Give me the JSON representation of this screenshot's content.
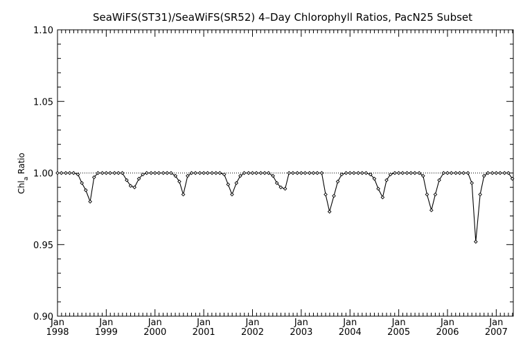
{
  "chart_data": {
    "type": "line",
    "title": "SeaWiFS(ST31)/SeaWiFS(SR52) 4–Day Chlorophyll Ratios, PacN25 Subset",
    "ylabel": "Chl",
    "ylabel_subscript": "a",
    "ylabel_suffix": " Ratio",
    "xlabel": "",
    "ylim": [
      0.9,
      1.1
    ],
    "xlim": [
      1998.0,
      2007.35
    ],
    "yticks": [
      "0.90",
      "0.95",
      "1.00",
      "1.05",
      "1.10"
    ],
    "ytick_values": [
      0.9,
      0.95,
      1.0,
      1.05,
      1.1
    ],
    "xticks": [
      {
        "value": 1998,
        "month": "Jan",
        "year": "1998"
      },
      {
        "value": 1999,
        "month": "Jan",
        "year": "1999"
      },
      {
        "value": 2000,
        "month": "Jan",
        "year": "2000"
      },
      {
        "value": 2001,
        "month": "Jan",
        "year": "2001"
      },
      {
        "value": 2002,
        "month": "Jan",
        "year": "2002"
      },
      {
        "value": 2003,
        "month": "Jan",
        "year": "2003"
      },
      {
        "value": 2004,
        "month": "Jan",
        "year": "2004"
      },
      {
        "value": 2005,
        "month": "Jan",
        "year": "2005"
      },
      {
        "value": 2006,
        "month": "Jan",
        "year": "2006"
      },
      {
        "value": 2007,
        "month": "Jan",
        "year": "2007"
      }
    ],
    "reference_line": 1.0,
    "grid": false,
    "series": [
      {
        "x": [
          1998.0,
          1998.08,
          1998.17,
          1998.25,
          1998.33,
          1998.42,
          1998.5,
          1998.58,
          1998.67,
          1998.75,
          1998.83,
          1998.92,
          1999.0,
          1999.08,
          1999.17,
          1999.25,
          1999.33,
          1999.42,
          1999.5,
          1999.58,
          1999.67,
          1999.75,
          1999.83,
          1999.92,
          2000.0,
          2000.08,
          2000.17,
          2000.25,
          2000.33,
          2000.42,
          2000.5,
          2000.58,
          2000.67,
          2000.75,
          2000.83,
          2000.92,
          2001.0,
          2001.08,
          2001.17,
          2001.25,
          2001.33,
          2001.42,
          2001.5,
          2001.58,
          2001.67,
          2001.75,
          2001.83,
          2001.92,
          2002.0,
          2002.08,
          2002.17,
          2002.25,
          2002.33,
          2002.42,
          2002.5,
          2002.58,
          2002.67,
          2002.75,
          2002.83,
          2002.92,
          2003.0,
          2003.08,
          2003.17,
          2003.25,
          2003.33,
          2003.42,
          2003.5,
          2003.58,
          2003.67,
          2003.75,
          2003.83,
          2003.92,
          2004.0,
          2004.08,
          2004.17,
          2004.25,
          2004.33,
          2004.42,
          2004.5,
          2004.58,
          2004.67,
          2004.75,
          2004.83,
          2004.92,
          2005.0,
          2005.08,
          2005.17,
          2005.25,
          2005.33,
          2005.42,
          2005.5,
          2005.58,
          2005.67,
          2005.75,
          2005.83,
          2005.92,
          2006.0,
          2006.08,
          2006.17,
          2006.25,
          2006.33,
          2006.42,
          2006.5,
          2006.58,
          2006.67,
          2006.75,
          2006.83,
          2006.92,
          2007.0,
          2007.08,
          2007.17,
          2007.25,
          2007.33
        ],
        "y": [
          1.0,
          1.0,
          1.0,
          1.0,
          1.0,
          0.999,
          0.993,
          0.988,
          0.98,
          0.997,
          1.0,
          1.0,
          1.0,
          1.0,
          1.0,
          1.0,
          1.0,
          0.995,
          0.991,
          0.99,
          0.996,
          0.999,
          1.0,
          1.0,
          1.0,
          1.0,
          1.0,
          1.0,
          1.0,
          0.998,
          0.994,
          0.985,
          0.998,
          1.0,
          1.0,
          1.0,
          1.0,
          1.0,
          1.0,
          1.0,
          1.0,
          0.999,
          0.992,
          0.985,
          0.993,
          0.998,
          1.0,
          1.0,
          1.0,
          1.0,
          1.0,
          1.0,
          1.0,
          0.998,
          0.993,
          0.99,
          0.989,
          1.0,
          1.0,
          1.0,
          1.0,
          1.0,
          1.0,
          1.0,
          1.0,
          1.0,
          0.985,
          0.973,
          0.984,
          0.994,
          0.999,
          1.0,
          1.0,
          1.0,
          1.0,
          1.0,
          1.0,
          0.999,
          0.996,
          0.989,
          0.983,
          0.995,
          0.999,
          1.0,
          1.0,
          1.0,
          1.0,
          1.0,
          1.0,
          1.0,
          0.998,
          0.985,
          0.974,
          0.985,
          0.995,
          1.0,
          1.0,
          1.0,
          1.0,
          1.0,
          1.0,
          1.0,
          0.993,
          0.952,
          0.985,
          0.998,
          1.0,
          1.0,
          1.0,
          1.0,
          1.0,
          1.0,
          0.996
        ]
      }
    ]
  }
}
